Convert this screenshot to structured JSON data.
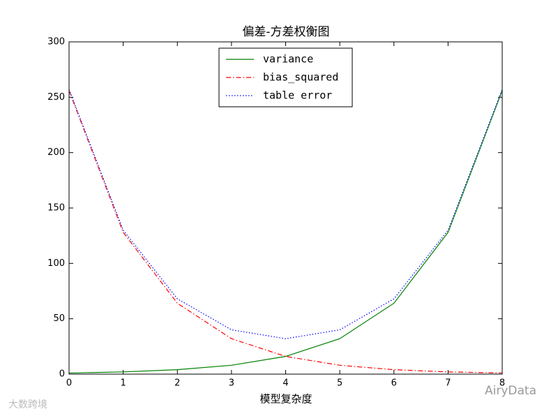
{
  "chart_data": {
    "type": "line",
    "title": "偏差-方差权衡图",
    "x_label": "模型复杂度",
    "x": [
      0,
      1,
      2,
      3,
      4,
      5,
      6,
      7,
      8
    ],
    "series": [
      {
        "name": "variance",
        "color": "#008000",
        "linestyle": "solid",
        "values": [
          1,
          2,
          4,
          8,
          16,
          32,
          64,
          128,
          256
        ]
      },
      {
        "name": "bias_squared",
        "color": "#ff0000",
        "linestyle": "dashdot",
        "values": [
          256,
          128,
          64,
          32,
          16,
          8,
          4,
          2,
          1
        ]
      },
      {
        "name": "table error",
        "color": "#0000ff",
        "linestyle": "dotted",
        "values": [
          257,
          130,
          68,
          40,
          32,
          40,
          68,
          130,
          257
        ]
      }
    ],
    "xlim": [
      0,
      8
    ],
    "xticks": [
      0,
      1,
      2,
      3,
      4,
      5,
      6,
      7,
      8
    ],
    "ylim": [
      0,
      300
    ],
    "yticks": [
      0,
      50,
      100,
      150,
      200,
      250,
      300
    ],
    "grid": false,
    "legend_position": "upper center"
  },
  "watermarks": [
    "大数跨境",
    "AiryData"
  ]
}
